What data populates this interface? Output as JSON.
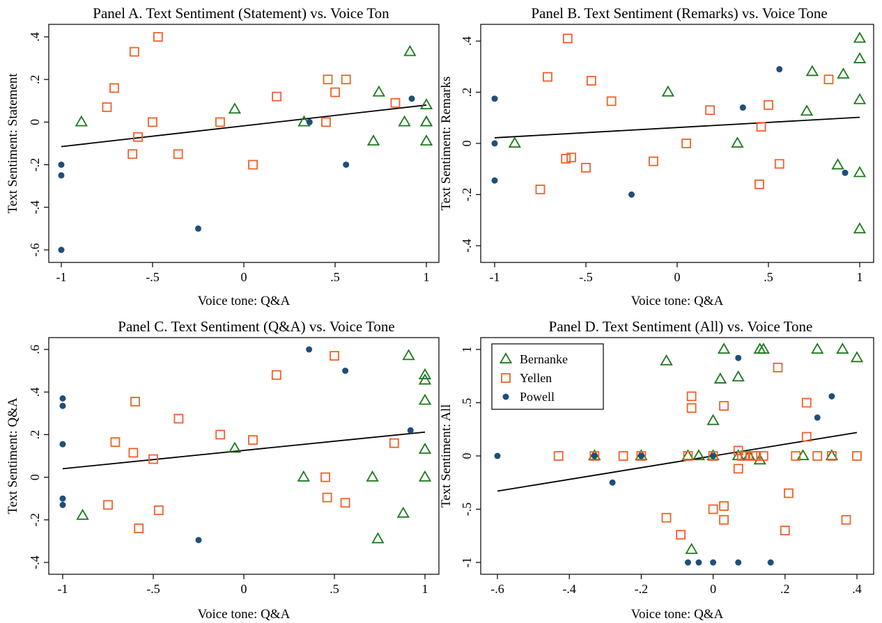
{
  "colors": {
    "Bernanke": "#1a7a1a",
    "Yellen": "#f0602a",
    "Powell": "#1f4e79",
    "fit": "#000000"
  },
  "legend": [
    "Bernanke",
    "Yellen",
    "Powell"
  ],
  "chart_data": [
    {
      "type": "scatter",
      "title": "Panel A. Text Sentiment (Statement) vs. Voice Ton",
      "xlabel": "Voice tone: Q&A",
      "ylabel": "Text Sentiment: Statement",
      "xlim": [
        -1,
        1
      ],
      "ylim": [
        -0.6,
        0.4
      ],
      "xticks": [
        -1,
        -0.5,
        0,
        0.5,
        1
      ],
      "xtick_labels": [
        "-1",
        "-.5",
        "0",
        ".5",
        "1"
      ],
      "yticks": [
        -0.6,
        -0.4,
        -0.2,
        0,
        0.2,
        0.4
      ],
      "ytick_labels": [
        "-.6",
        "-.4",
        "-.2",
        "0",
        ".2",
        ".4"
      ],
      "fit": [
        [
          -1,
          -0.115
        ],
        [
          1,
          0.08
        ]
      ],
      "series": [
        {
          "name": "Bernanke",
          "marker": "triangle",
          "x": [
            -0.89,
            -0.05,
            0.33,
            0.71,
            0.74,
            0.88,
            0.91,
            1.0,
            1.0,
            1.0,
            1.0
          ],
          "y": [
            0.0,
            0.06,
            0.0,
            -0.09,
            0.14,
            0.0,
            0.33,
            0.08,
            0.0,
            0.0,
            -0.09
          ]
        },
        {
          "name": "Yellen",
          "marker": "square",
          "x": [
            -0.75,
            -0.71,
            -0.61,
            -0.6,
            -0.58,
            -0.5,
            -0.47,
            -0.36,
            -0.13,
            0.05,
            0.18,
            0.45,
            0.46,
            0.5,
            0.56,
            0.83
          ],
          "y": [
            0.07,
            0.16,
            -0.15,
            0.33,
            -0.07,
            0.0,
            0.4,
            -0.15,
            0.0,
            -0.2,
            0.12,
            0.0,
            0.2,
            0.14,
            0.2,
            0.09
          ]
        },
        {
          "name": "Powell",
          "marker": "circle",
          "x": [
            -1.0,
            -1.0,
            -1.0,
            -0.25,
            0.36,
            0.56,
            0.92
          ],
          "y": [
            -0.2,
            -0.25,
            -0.6,
            -0.5,
            0.0,
            -0.2,
            0.11
          ]
        }
      ]
    },
    {
      "type": "scatter",
      "title": "Panel B. Text Sentiment (Remarks) vs. Voice Tone",
      "xlabel": "Voice tone: Q&A",
      "ylabel": "Text Sentiment: Remarks",
      "xlim": [
        -1,
        1
      ],
      "ylim": [
        -0.4,
        0.4
      ],
      "xticks": [
        -1,
        -0.5,
        0,
        0.5,
        1
      ],
      "xtick_labels": [
        "-1",
        "-.5",
        "0",
        ".5",
        "1"
      ],
      "yticks": [
        -0.4,
        -0.2,
        0,
        0.2,
        0.4
      ],
      "ytick_labels": [
        "-.4",
        "-.2",
        "0",
        ".2",
        ".4"
      ],
      "fit": [
        [
          -1,
          0.022
        ],
        [
          1,
          0.102
        ]
      ],
      "series": [
        {
          "name": "Bernanke",
          "marker": "triangle",
          "x": [
            -0.89,
            -0.05,
            0.33,
            0.71,
            0.74,
            0.88,
            0.91,
            1.0,
            1.0,
            1.0,
            1.0,
            1.0
          ],
          "y": [
            0.0,
            0.2,
            0.0,
            0.125,
            0.28,
            -0.085,
            0.27,
            0.41,
            0.33,
            0.17,
            -0.115,
            -0.335
          ]
        },
        {
          "name": "Yellen",
          "marker": "square",
          "x": [
            -0.75,
            -0.71,
            -0.61,
            -0.6,
            -0.58,
            -0.5,
            -0.47,
            -0.36,
            -0.13,
            0.05,
            0.18,
            0.45,
            0.46,
            0.5,
            0.56,
            0.83
          ],
          "y": [
            -0.18,
            0.26,
            -0.06,
            0.41,
            -0.055,
            -0.095,
            0.245,
            0.165,
            -0.07,
            0.0,
            0.13,
            -0.16,
            0.065,
            0.15,
            -0.08,
            0.25
          ]
        },
        {
          "name": "Powell",
          "marker": "circle",
          "x": [
            -1.0,
            -1.0,
            -1.0,
            -0.25,
            0.36,
            0.56,
            0.92
          ],
          "y": [
            0.175,
            0.0,
            -0.145,
            -0.2,
            0.14,
            0.29,
            -0.115
          ]
        }
      ]
    },
    {
      "type": "scatter",
      "title": "Panel C. Text Sentiment (Q&A) vs. Voice Tone",
      "xlabel": "Voice tone: Q&A",
      "ylabel": "Text Sentiment: Q&A",
      "xlim": [
        -1,
        1
      ],
      "ylim": [
        -0.4,
        0.6
      ],
      "xticks": [
        -1,
        -0.5,
        0,
        0.5,
        1
      ],
      "xtick_labels": [
        "-1",
        "-.5",
        "0",
        ".5",
        "1"
      ],
      "yticks": [
        -0.4,
        -0.2,
        0,
        0.2,
        0.4,
        0.6
      ],
      "ytick_labels": [
        "-.4",
        "-.2",
        "0",
        ".2",
        ".4",
        ".6"
      ],
      "fit": [
        [
          -1,
          0.04
        ],
        [
          1,
          0.212
        ]
      ],
      "series": [
        {
          "name": "Bernanke",
          "marker": "triangle",
          "x": [
            -0.89,
            -0.05,
            0.33,
            0.71,
            0.74,
            0.88,
            0.91,
            1.0,
            1.0,
            1.0,
            1.0,
            1.0
          ],
          "y": [
            -0.18,
            0.135,
            0.0,
            0.0,
            -0.29,
            -0.17,
            0.57,
            0.48,
            0.455,
            0.36,
            0.13,
            0.0
          ]
        },
        {
          "name": "Yellen",
          "marker": "square",
          "x": [
            -0.75,
            -0.71,
            -0.61,
            -0.6,
            -0.58,
            -0.5,
            -0.47,
            -0.36,
            -0.13,
            0.05,
            0.18,
            0.45,
            0.46,
            0.5,
            0.56,
            0.83
          ],
          "y": [
            -0.13,
            0.165,
            0.115,
            0.355,
            -0.24,
            0.085,
            -0.155,
            0.275,
            0.2,
            0.175,
            0.48,
            0.0,
            -0.095,
            0.57,
            -0.12,
            0.16
          ]
        },
        {
          "name": "Powell",
          "marker": "circle",
          "x": [
            -1.0,
            -1.0,
            -1.0,
            -1.0,
            -1.0,
            -0.25,
            0.36,
            0.56,
            0.92
          ],
          "y": [
            0.37,
            0.335,
            0.155,
            -0.1,
            -0.13,
            -0.295,
            0.6,
            0.5,
            0.22
          ]
        }
      ]
    },
    {
      "type": "scatter",
      "title": "Panel D. Text Sentiment (All) vs. Voice Tone",
      "xlabel": "Voice tone: Q&A",
      "ylabel": "Text Sentiment: All",
      "xlim": [
        -0.6,
        0.4
      ],
      "ylim": [
        -1,
        1
      ],
      "xticks": [
        -0.6,
        -0.4,
        -0.2,
        0,
        0.2,
        0.4
      ],
      "xtick_labels": [
        "-.6",
        "-.4",
        "-.2",
        "0",
        ".2",
        ".4"
      ],
      "yticks": [
        -1,
        -0.5,
        0,
        0.5,
        1
      ],
      "ytick_labels": [
        "-1",
        "-.5",
        "0",
        ".5",
        "1"
      ],
      "legend_position": "top-left",
      "fit": [
        [
          -0.6,
          -0.33
        ],
        [
          0.4,
          0.22
        ]
      ],
      "series": [
        {
          "name": "Bernanke",
          "marker": "triangle",
          "x": [
            -0.33,
            -0.2,
            -0.13,
            -0.07,
            -0.06,
            -0.04,
            0.0,
            0.0,
            0.02,
            0.03,
            0.07,
            0.07,
            0.1,
            0.13,
            0.13,
            0.14,
            0.25,
            0.29,
            0.33,
            0.36,
            0.4
          ],
          "y": [
            0.0,
            0.0,
            0.89,
            0.0,
            -0.88,
            0.0,
            0.33,
            0.0,
            0.72,
            1.0,
            0.74,
            0.0,
            0.0,
            -0.04,
            1.0,
            1.0,
            0.0,
            1.0,
            0.0,
            1.0,
            0.92
          ]
        },
        {
          "name": "Yellen",
          "marker": "square",
          "x": [
            -0.43,
            -0.33,
            -0.25,
            -0.2,
            -0.13,
            -0.09,
            -0.07,
            -0.06,
            -0.06,
            0.0,
            0.0,
            0.03,
            0.03,
            0.03,
            0.07,
            0.07,
            0.08,
            0.09,
            0.11,
            0.12,
            0.14,
            0.18,
            0.2,
            0.21,
            0.23,
            0.26,
            0.26,
            0.29,
            0.33,
            0.37,
            0.4
          ],
          "y": [
            0.0,
            0.0,
            0.0,
            0.0,
            -0.58,
            -0.74,
            0.0,
            0.56,
            0.45,
            -0.5,
            0.0,
            0.47,
            -0.47,
            -0.6,
            0.05,
            -0.12,
            0.0,
            0.0,
            0.0,
            0.0,
            0.0,
            0.83,
            -0.7,
            -0.35,
            0.0,
            0.5,
            0.18,
            0.0,
            0.0,
            -0.6,
            0.0
          ]
        },
        {
          "name": "Powell",
          "marker": "circle",
          "x": [
            -0.6,
            -0.33,
            -0.28,
            -0.2,
            -0.07,
            -0.04,
            0.0,
            0.0,
            0.07,
            0.07,
            0.16,
            0.29,
            0.33
          ],
          "y": [
            0.0,
            0.0,
            -0.25,
            0.0,
            -1.0,
            -1.0,
            -1.0,
            0.0,
            -1.0,
            0.92,
            -1.0,
            0.36,
            0.56
          ]
        }
      ]
    }
  ]
}
